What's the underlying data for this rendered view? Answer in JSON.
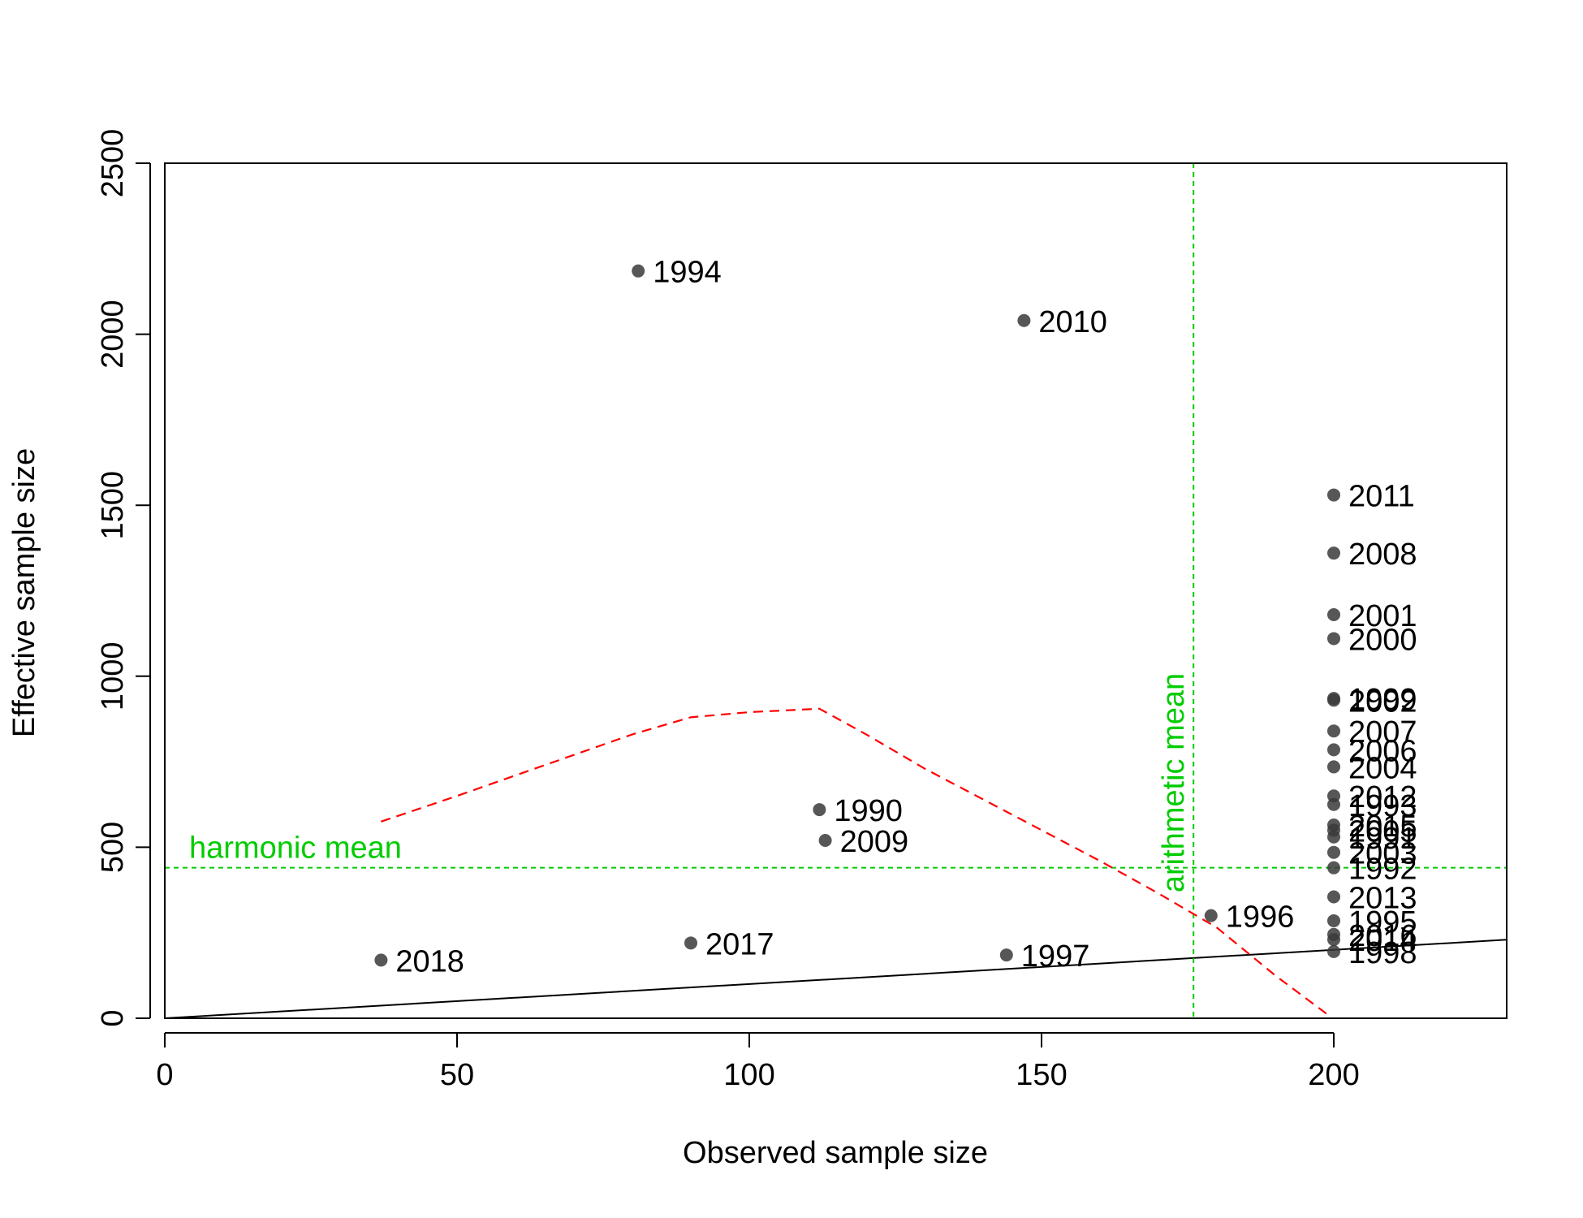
{
  "chart_data": {
    "type": "scatter",
    "xlabel": "Observed sample size",
    "ylabel": "Effective sample size",
    "xlim": [
      0,
      230
    ],
    "ylim": [
      0,
      2500
    ],
    "x_ticks": [
      0,
      50,
      100,
      150,
      200
    ],
    "y_ticks": [
      0,
      500,
      1000,
      1500,
      2000,
      2500
    ],
    "colors": {
      "points": "#3a3a3a",
      "point_alpha": 0.85,
      "reference_lines": "#00cc00",
      "smooth_line": "#ff0000",
      "one_to_one_line": "#000000"
    },
    "points": [
      {
        "label": "1994",
        "x": 81,
        "y": 2185
      },
      {
        "label": "2010",
        "x": 147,
        "y": 2040
      },
      {
        "label": "2011",
        "x": 200,
        "y": 1530
      },
      {
        "label": "2008",
        "x": 200,
        "y": 1360
      },
      {
        "label": "2001",
        "x": 200,
        "y": 1180
      },
      {
        "label": "2000",
        "x": 200,
        "y": 1110
      },
      {
        "label": "1999",
        "x": 200,
        "y": 935
      },
      {
        "label": "2002",
        "x": 200,
        "y": 930
      },
      {
        "label": "2007",
        "x": 200,
        "y": 840
      },
      {
        "label": "2006",
        "x": 200,
        "y": 785
      },
      {
        "label": "2004",
        "x": 200,
        "y": 735
      },
      {
        "label": "2012",
        "x": 200,
        "y": 650
      },
      {
        "label": "1993",
        "x": 200,
        "y": 625
      },
      {
        "label": "2015",
        "x": 200,
        "y": 565
      },
      {
        "label": "2005",
        "x": 200,
        "y": 550
      },
      {
        "label": "1991",
        "x": 200,
        "y": 530
      },
      {
        "label": "2003",
        "x": 200,
        "y": 485
      },
      {
        "label": "1992",
        "x": 200,
        "y": 440
      },
      {
        "label": "2013",
        "x": 200,
        "y": 355
      },
      {
        "label": "1995",
        "x": 200,
        "y": 285
      },
      {
        "label": "2016",
        "x": 200,
        "y": 245
      },
      {
        "label": "2014",
        "x": 200,
        "y": 230
      },
      {
        "label": "1998",
        "x": 200,
        "y": 195
      },
      {
        "label": "1990",
        "x": 112,
        "y": 610
      },
      {
        "label": "2009",
        "x": 113,
        "y": 520
      },
      {
        "label": "1996",
        "x": 179,
        "y": 300
      },
      {
        "label": "2018",
        "x": 37,
        "y": 170
      },
      {
        "label": "2017",
        "x": 90,
        "y": 220
      },
      {
        "label": "1997",
        "x": 144,
        "y": 185
      }
    ],
    "one_to_one_line": {
      "x": [
        0,
        230
      ],
      "y": [
        0,
        230
      ]
    },
    "smooth_line": {
      "style": "dashed",
      "x": [
        37,
        50,
        60,
        70,
        80,
        90,
        100,
        112,
        120,
        130,
        140,
        150,
        160,
        170,
        180,
        190,
        199
      ],
      "y": [
        575,
        650,
        710,
        770,
        830,
        880,
        895,
        905,
        830,
        730,
        640,
        550,
        460,
        365,
        265,
        125,
        10
      ]
    },
    "harmonic_mean": {
      "label": "harmonic mean",
      "y": 440
    },
    "arithmetic_mean": {
      "label": "arithmetic mean",
      "x": 176
    }
  }
}
